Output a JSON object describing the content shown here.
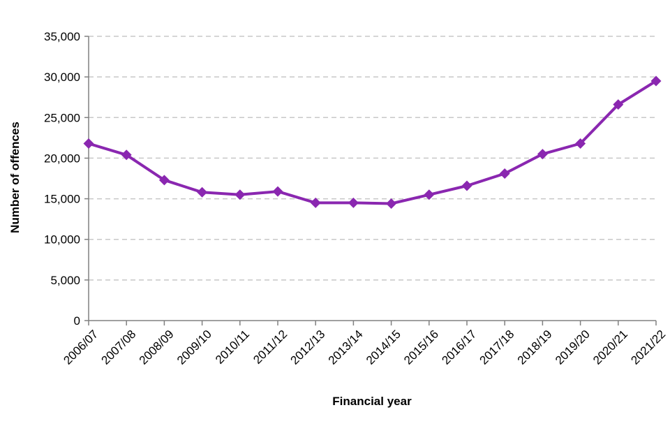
{
  "chart_data": {
    "type": "line",
    "xlabel": "Financial year",
    "ylabel": "Number of offences",
    "categories": [
      "2006/07",
      "2007/08",
      "2008/09",
      "2009/10",
      "2010/11",
      "2011/12",
      "2012/13",
      "2013/14",
      "2014/15",
      "2015/16",
      "2016/17",
      "2017/18",
      "2018/19",
      "2019/20",
      "2020/21",
      "2021/22"
    ],
    "series": [
      {
        "values": [
          21800,
          20400,
          17300,
          15800,
          15500,
          15900,
          14500,
          14500,
          14400,
          15500,
          16600,
          18100,
          20500,
          21800,
          26600,
          29500
        ]
      }
    ],
    "ylim": [
      0,
      35000
    ],
    "yticks": [
      0,
      5000,
      10000,
      15000,
      20000,
      25000,
      30000,
      35000
    ],
    "ytick_labels": [
      "0",
      "5,000",
      "10,000",
      "15,000",
      "20,000",
      "25,000",
      "30,000",
      "35,000"
    ],
    "grid": true,
    "grid_style": "dashed horizontal",
    "legend": "none",
    "marker": "diamond",
    "colors": {
      "series": "#8a27b0",
      "grid": "#c8c8c8",
      "axis": "#808080"
    }
  }
}
